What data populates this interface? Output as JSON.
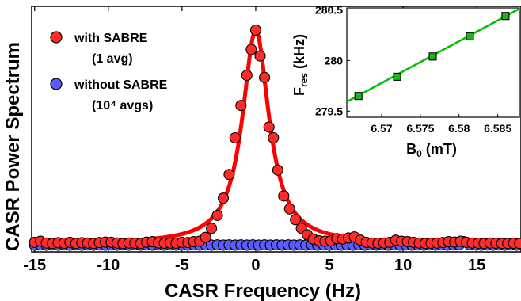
{
  "chart_data": [
    {
      "type": "scatter",
      "xlabel": "CASR Frequency (Hz)",
      "ylabel": "CASR Power Spectrum",
      "xlim": [
        -15.2,
        18
      ],
      "ylim": [
        0,
        1.03
      ],
      "xticks": [
        "-15",
        "-10",
        "-5",
        "0",
        "5",
        "10",
        "15"
      ],
      "xtick_values": [
        -15,
        -10,
        -5,
        0,
        5,
        10,
        15
      ],
      "legend_position": "top-left",
      "grid": false,
      "series": [
        {
          "name": "with SABRE",
          "name_line2": "(1 avg)",
          "kind": "scatter",
          "color": "#ff2a2a",
          "points": [
            [
              -15,
              0.015
            ],
            [
              -14.6,
              0.02
            ],
            [
              -14.2,
              0.012
            ],
            [
              -13.8,
              0.01
            ],
            [
              -13.4,
              0.013
            ],
            [
              -13,
              0.011
            ],
            [
              -12.6,
              0.015
            ],
            [
              -12.2,
              0.01
            ],
            [
              -11.8,
              0.013
            ],
            [
              -11.4,
              0.012
            ],
            [
              -11,
              0.01
            ],
            [
              -10.6,
              0.014
            ],
            [
              -10.2,
              0.016
            ],
            [
              -9.8,
              0.015
            ],
            [
              -9.4,
              0.012
            ],
            [
              -9,
              0.01
            ],
            [
              -8.6,
              0.012
            ],
            [
              -8.2,
              0.011
            ],
            [
              -7.8,
              0.01
            ],
            [
              -7.4,
              0.016
            ],
            [
              -7,
              0.018
            ],
            [
              -6.6,
              0.012
            ],
            [
              -6.2,
              0.011
            ],
            [
              -5.8,
              0.012
            ],
            [
              -5.4,
              0.011
            ],
            [
              -5,
              0.015
            ],
            [
              -4.6,
              0.014
            ],
            [
              -4.2,
              0.018
            ],
            [
              -3.8,
              0.02
            ],
            [
              -3.4,
              0.038
            ],
            [
              -3.0,
              0.08
            ],
            [
              -2.6,
              0.14
            ],
            [
              -2.2,
              0.22
            ],
            [
              -1.8,
              0.33
            ],
            [
              -1.4,
              0.5
            ],
            [
              -1.0,
              0.65
            ],
            [
              -0.6,
              0.79
            ],
            [
              -0.3,
              0.91
            ],
            [
              0,
              1.0
            ],
            [
              0.3,
              0.88
            ],
            [
              0.6,
              0.78
            ],
            [
              0.9,
              0.55
            ],
            [
              1.2,
              0.5
            ],
            [
              1.5,
              0.35
            ],
            [
              1.9,
              0.23
            ],
            [
              2.3,
              0.17
            ],
            [
              2.7,
              0.12
            ],
            [
              3.1,
              0.08
            ],
            [
              3.5,
              0.05
            ],
            [
              3.9,
              0.03
            ],
            [
              4.3,
              0.022
            ],
            [
              4.7,
              0.02
            ],
            [
              5.1,
              0.022
            ],
            [
              5.5,
              0.032
            ],
            [
              5.9,
              0.03
            ],
            [
              6.3,
              0.035
            ],
            [
              6.7,
              0.04
            ],
            [
              7.1,
              0.025
            ],
            [
              7.5,
              0.015
            ],
            [
              7.9,
              0.012
            ],
            [
              8.3,
              0.011
            ],
            [
              8.7,
              0.012
            ],
            [
              9.1,
              0.015
            ],
            [
              9.5,
              0.025
            ],
            [
              9.9,
              0.02
            ],
            [
              10.3,
              0.018
            ],
            [
              10.7,
              0.015
            ],
            [
              11.1,
              0.012
            ],
            [
              11.5,
              0.01
            ],
            [
              11.9,
              0.011
            ],
            [
              12.3,
              0.012
            ],
            [
              12.7,
              0.014
            ],
            [
              13.1,
              0.018
            ],
            [
              13.5,
              0.016
            ],
            [
              13.9,
              0.02
            ],
            [
              14.3,
              0.015
            ],
            [
              14.7,
              0.012
            ],
            [
              15.1,
              0.011
            ],
            [
              15.5,
              0.01
            ],
            [
              15.9,
              0.012
            ],
            [
              16.3,
              0.011
            ],
            [
              16.7,
              0.01
            ],
            [
              17.1,
              0.01
            ],
            [
              17.5,
              0.011
            ],
            [
              17.9,
              0.01
            ]
          ]
        },
        {
          "name": "without SABRE",
          "name_line2": "(10⁴ avgs)",
          "kind": "scatter",
          "color": "#5b5bff",
          "points": [
            [
              -15,
              0.002
            ],
            [
              -14.6,
              0.003
            ],
            [
              -14.2,
              0.002
            ],
            [
              -13.8,
              0.003
            ],
            [
              -13.4,
              0.002
            ],
            [
              -13,
              0.003
            ],
            [
              -12.6,
              0.002
            ],
            [
              -12.2,
              0.003
            ],
            [
              -11.8,
              0.002
            ],
            [
              -11.4,
              0.003
            ],
            [
              -11,
              0.002
            ],
            [
              -10.6,
              0.003
            ],
            [
              -10.2,
              0.002
            ],
            [
              -9.8,
              0.003
            ],
            [
              -9.4,
              0.002
            ],
            [
              -9,
              0.003
            ],
            [
              -8.6,
              0.002
            ],
            [
              -8.2,
              0.003
            ],
            [
              -7.8,
              0.002
            ],
            [
              -7.4,
              0.003
            ],
            [
              -7,
              0.002
            ],
            [
              -6.6,
              0.003
            ],
            [
              -6.2,
              0.002
            ],
            [
              -5.8,
              0.003
            ],
            [
              -5.4,
              0.002
            ],
            [
              -5,
              0.003
            ],
            [
              -4.6,
              0.002
            ],
            [
              -4.2,
              0.003
            ],
            [
              -3.8,
              0.002
            ],
            [
              -3.4,
              0.003
            ],
            [
              -3,
              0.002
            ],
            [
              -2.6,
              0.003
            ],
            [
              -2.2,
              0.002
            ],
            [
              -1.8,
              0.003
            ],
            [
              -1.4,
              0.002
            ],
            [
              -1,
              0.003
            ],
            [
              -0.6,
              0.002
            ],
            [
              -0.2,
              0.003
            ],
            [
              0.2,
              0.002
            ],
            [
              0.6,
              0.003
            ],
            [
              1,
              0.002
            ],
            [
              1.4,
              0.003
            ],
            [
              1.8,
              0.002
            ],
            [
              2.2,
              0.003
            ],
            [
              2.6,
              0.002
            ],
            [
              3,
              0.003
            ],
            [
              3.4,
              0.002
            ],
            [
              3.8,
              0.003
            ],
            [
              4.2,
              0.002
            ],
            [
              4.6,
              0.003
            ],
            [
              5,
              0.002
            ],
            [
              5.4,
              0.003
            ],
            [
              5.8,
              0.002
            ],
            [
              6.2,
              0.003
            ],
            [
              6.6,
              0.002
            ],
            [
              7,
              0.003
            ],
            [
              7.4,
              0.002
            ],
            [
              7.8,
              0.003
            ],
            [
              8.2,
              0.002
            ],
            [
              8.6,
              0.003
            ],
            [
              9,
              0.002
            ],
            [
              9.4,
              0.003
            ],
            [
              9.8,
              0.002
            ],
            [
              10.2,
              0.003
            ],
            [
              10.6,
              0.002
            ],
            [
              11,
              0.003
            ],
            [
              11.4,
              0.002
            ],
            [
              11.8,
              0.003
            ],
            [
              12.2,
              0.002
            ],
            [
              12.6,
              0.003
            ],
            [
              13,
              0.002
            ],
            [
              13.4,
              0.003
            ],
            [
              13.8,
              0.004
            ],
            [
              14.1,
              0.018
            ],
            [
              14.5,
              0.004
            ],
            [
              14.9,
              0.003
            ],
            [
              15.3,
              0.002
            ],
            [
              15.7,
              0.003
            ],
            [
              16.1,
              0.002
            ],
            [
              16.5,
              0.003
            ],
            [
              16.9,
              0.002
            ],
            [
              17.3,
              0.003
            ],
            [
              17.7,
              0.002
            ]
          ]
        },
        {
          "name": "fit",
          "kind": "line",
          "color": "#ff0000",
          "function": "lorentzian",
          "amplitude": 0.99,
          "center": 0,
          "hwhm": 1.1,
          "baseline": 0.008
        }
      ]
    },
    {
      "type": "scatter",
      "xlabel": "B₀ (mT)",
      "ylabel": "F_res (kHz)",
      "ylabel_main": "F",
      "ylabel_sub": "res",
      "ylabel_rest": " (kHz)",
      "xlabel_main": "B",
      "xlabel_sub": "0",
      "xlabel_rest": " (mT)",
      "xlim": [
        6.5655,
        6.5878
      ],
      "ylim": [
        279.44,
        280.52
      ],
      "xticks": [
        "6.57",
        "6.575",
        "6.58",
        "6.585"
      ],
      "xtick_values": [
        6.57,
        6.575,
        6.58,
        6.585
      ],
      "yticks": [
        "279.5",
        "280",
        "280.5"
      ],
      "ytick_values": [
        279.5,
        280,
        280.5
      ],
      "grid": false,
      "series": [
        {
          "kind": "scatter+line",
          "marker_color": "#1cb51c",
          "line_color": "#00c000",
          "x": [
            6.567,
            6.572,
            6.5766,
            6.5814,
            6.586
          ],
          "y": [
            279.65,
            279.84,
            280.04,
            280.24,
            280.44
          ],
          "fit": {
            "slope": 41.2,
            "x0": 6.567,
            "y0": 279.655
          }
        }
      ]
    }
  ]
}
